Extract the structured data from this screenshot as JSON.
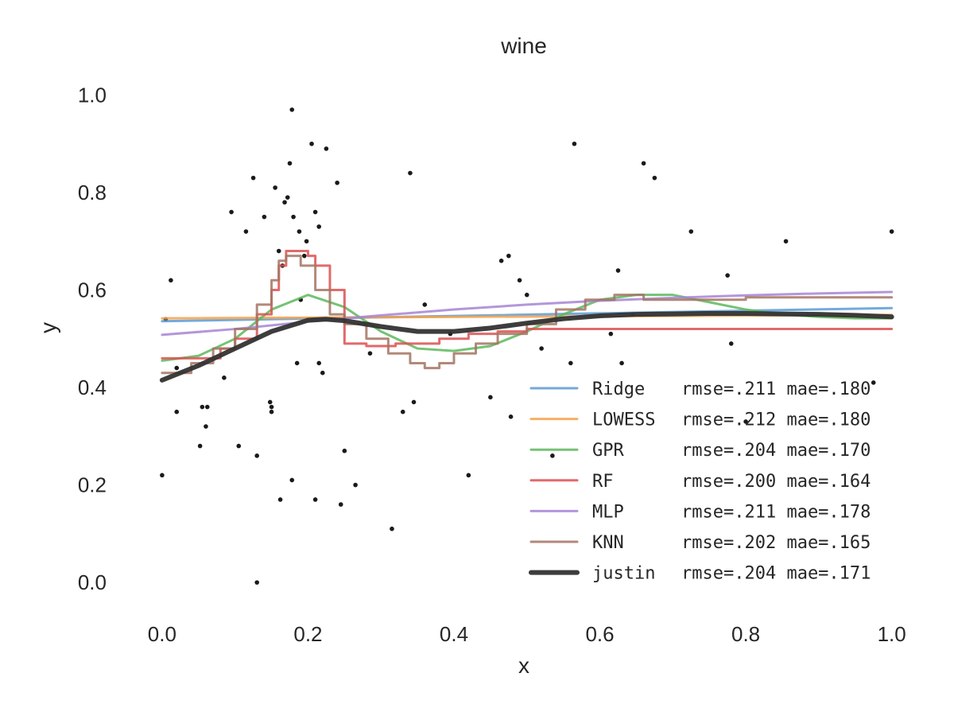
{
  "chart_data": {
    "type": "scatter",
    "title": "wine",
    "xlabel": "x",
    "ylabel": "y",
    "xlim": [
      -0.05,
      1.02
    ],
    "ylim": [
      -0.07,
      1.04
    ],
    "xticks": [
      "0.0",
      "0.2",
      "0.4",
      "0.6",
      "0.8",
      "1.0"
    ],
    "yticks": [
      "0.0",
      "0.2",
      "0.4",
      "0.6",
      "0.8",
      "1.0"
    ],
    "xtick_values": [
      0,
      0.2,
      0.4,
      0.6,
      0.8,
      1.0
    ],
    "ytick_values": [
      0,
      0.2,
      0.4,
      0.6,
      0.8,
      1.0
    ],
    "grid": false,
    "legend_position": "lower-right",
    "points": [
      [
        0.0,
        0.22
      ],
      [
        0.005,
        0.54
      ],
      [
        0.012,
        0.62
      ],
      [
        0.02,
        0.44
      ],
      [
        0.02,
        0.35
      ],
      [
        0.055,
        0.36
      ],
      [
        0.06,
        0.32
      ],
      [
        0.062,
        0.36
      ],
      [
        0.052,
        0.28
      ],
      [
        0.085,
        0.42
      ],
      [
        0.095,
        0.76
      ],
      [
        0.105,
        0.28
      ],
      [
        0.115,
        0.72
      ],
      [
        0.125,
        0.83
      ],
      [
        0.13,
        0.26
      ],
      [
        0.13,
        0.0
      ],
      [
        0.14,
        0.75
      ],
      [
        0.148,
        0.37
      ],
      [
        0.15,
        0.36
      ],
      [
        0.15,
        0.35
      ],
      [
        0.155,
        0.81
      ],
      [
        0.16,
        0.68
      ],
      [
        0.162,
        0.17
      ],
      [
        0.165,
        0.65
      ],
      [
        0.168,
        0.78
      ],
      [
        0.172,
        0.79
      ],
      [
        0.175,
        0.86
      ],
      [
        0.178,
        0.21
      ],
      [
        0.18,
        0.75
      ],
      [
        0.178,
        0.97
      ],
      [
        0.185,
        0.45
      ],
      [
        0.188,
        0.72
      ],
      [
        0.19,
        0.58
      ],
      [
        0.195,
        0.67
      ],
      [
        0.198,
        0.7
      ],
      [
        0.205,
        0.9
      ],
      [
        0.21,
        0.17
      ],
      [
        0.21,
        0.76
      ],
      [
        0.215,
        0.73
      ],
      [
        0.215,
        0.45
      ],
      [
        0.22,
        0.43
      ],
      [
        0.225,
        0.89
      ],
      [
        0.24,
        0.82
      ],
      [
        0.245,
        0.16
      ],
      [
        0.25,
        0.27
      ],
      [
        0.265,
        0.2
      ],
      [
        0.285,
        0.47
      ],
      [
        0.315,
        0.11
      ],
      [
        0.33,
        0.35
      ],
      [
        0.34,
        0.84
      ],
      [
        0.345,
        0.37
      ],
      [
        0.36,
        0.57
      ],
      [
        0.395,
        0.51
      ],
      [
        0.42,
        0.22
      ],
      [
        0.45,
        0.38
      ],
      [
        0.465,
        0.66
      ],
      [
        0.475,
        0.67
      ],
      [
        0.478,
        0.34
      ],
      [
        0.49,
        0.62
      ],
      [
        0.5,
        0.59
      ],
      [
        0.52,
        0.48
      ],
      [
        0.535,
        0.26
      ],
      [
        0.56,
        0.45
      ],
      [
        0.565,
        0.9
      ],
      [
        0.615,
        0.51
      ],
      [
        0.625,
        0.64
      ],
      [
        0.63,
        0.45
      ],
      [
        0.645,
        0.55
      ],
      [
        0.66,
        0.86
      ],
      [
        0.675,
        0.83
      ],
      [
        0.725,
        0.72
      ],
      [
        0.775,
        0.63
      ],
      [
        0.78,
        0.49
      ],
      [
        0.8,
        0.33
      ],
      [
        0.855,
        0.7
      ],
      [
        0.975,
        0.41
      ],
      [
        1.0,
        0.72
      ]
    ],
    "series": [
      {
        "name": "Ridge",
        "metrics": "rmse=.211 mae=.180",
        "color": "#5b9bd5",
        "width": 3,
        "opacity": 0.85,
        "step": false,
        "x": [
          0,
          1
        ],
        "y": [
          0.536,
          0.563
        ]
      },
      {
        "name": "LOWESS",
        "metrics": "rmse=.212 mae=.180",
        "color": "#f5a14a",
        "width": 3,
        "opacity": 0.85,
        "step": false,
        "x": [
          0,
          1
        ],
        "y": [
          0.542,
          0.549
        ]
      },
      {
        "name": "GPR",
        "metrics": "rmse=.204 mae=.170",
        "color": "#5cb85c",
        "width": 3,
        "opacity": 0.85,
        "step": false,
        "x": [
          0,
          0.05,
          0.1,
          0.15,
          0.2,
          0.25,
          0.3,
          0.35,
          0.4,
          0.45,
          0.5,
          0.55,
          0.6,
          0.65,
          0.7,
          0.75,
          0.8,
          0.85,
          0.9,
          0.95,
          1.0
        ],
        "y": [
          0.455,
          0.465,
          0.5,
          0.56,
          0.59,
          0.565,
          0.515,
          0.48,
          0.475,
          0.485,
          0.515,
          0.55,
          0.58,
          0.59,
          0.59,
          0.575,
          0.56,
          0.55,
          0.545,
          0.542,
          0.542
        ]
      },
      {
        "name": "RF",
        "metrics": "rmse=.200 mae=.164",
        "color": "#dc5050",
        "width": 3,
        "opacity": 0.85,
        "step": true,
        "x": [
          0,
          0.08,
          0.1,
          0.13,
          0.15,
          0.16,
          0.17,
          0.18,
          0.2,
          0.21,
          0.23,
          0.25,
          0.28,
          0.32,
          0.38,
          0.42,
          0.46,
          0.5,
          0.54,
          0.58,
          0.62,
          0.7,
          0.8,
          0.9,
          1.0
        ],
        "y": [
          0.46,
          0.48,
          0.5,
          0.55,
          0.6,
          0.65,
          0.68,
          0.68,
          0.67,
          0.65,
          0.6,
          0.49,
          0.485,
          0.49,
          0.5,
          0.51,
          0.515,
          0.52,
          0.52,
          0.52,
          0.52,
          0.52,
          0.52,
          0.52,
          0.52
        ]
      },
      {
        "name": "MLP",
        "metrics": "rmse=.211 mae=.178",
        "color": "#a784d4",
        "width": 3,
        "opacity": 0.85,
        "step": false,
        "x": [
          0,
          0.1,
          0.2,
          0.3,
          0.4,
          0.5,
          0.6,
          0.7,
          0.8,
          0.9,
          1.0
        ],
        "y": [
          0.508,
          0.52,
          0.535,
          0.548,
          0.56,
          0.57,
          0.578,
          0.584,
          0.589,
          0.593,
          0.596
        ]
      },
      {
        "name": "KNN",
        "metrics": "rmse=.202 mae=.165",
        "color": "#a37463",
        "width": 3,
        "opacity": 0.85,
        "step": true,
        "x": [
          0,
          0.04,
          0.07,
          0.1,
          0.13,
          0.15,
          0.16,
          0.17,
          0.19,
          0.21,
          0.23,
          0.25,
          0.28,
          0.31,
          0.34,
          0.36,
          0.38,
          0.4,
          0.43,
          0.46,
          0.5,
          0.54,
          0.58,
          0.62,
          0.66,
          0.7,
          0.8,
          0.9,
          1.0
        ],
        "y": [
          0.43,
          0.45,
          0.48,
          0.52,
          0.57,
          0.62,
          0.66,
          0.67,
          0.65,
          0.6,
          0.55,
          0.53,
          0.5,
          0.47,
          0.45,
          0.44,
          0.45,
          0.47,
          0.49,
          0.51,
          0.53,
          0.56,
          0.58,
          0.59,
          0.58,
          0.58,
          0.585,
          0.585,
          0.585
        ]
      },
      {
        "name": "justin",
        "metrics": "rmse=.204 mae=.171",
        "color": "#333333",
        "width": 6,
        "opacity": 0.95,
        "step": false,
        "x": [
          0,
          0.05,
          0.1,
          0.15,
          0.2,
          0.225,
          0.25,
          0.3,
          0.35,
          0.4,
          0.45,
          0.5,
          0.55,
          0.6,
          0.65,
          0.7,
          0.75,
          0.8,
          0.85,
          0.9,
          0.95,
          1.0
        ],
        "y": [
          0.415,
          0.445,
          0.48,
          0.515,
          0.538,
          0.54,
          0.537,
          0.525,
          0.515,
          0.515,
          0.522,
          0.532,
          0.541,
          0.547,
          0.55,
          0.551,
          0.552,
          0.552,
          0.551,
          0.55,
          0.548,
          0.545
        ]
      }
    ]
  }
}
